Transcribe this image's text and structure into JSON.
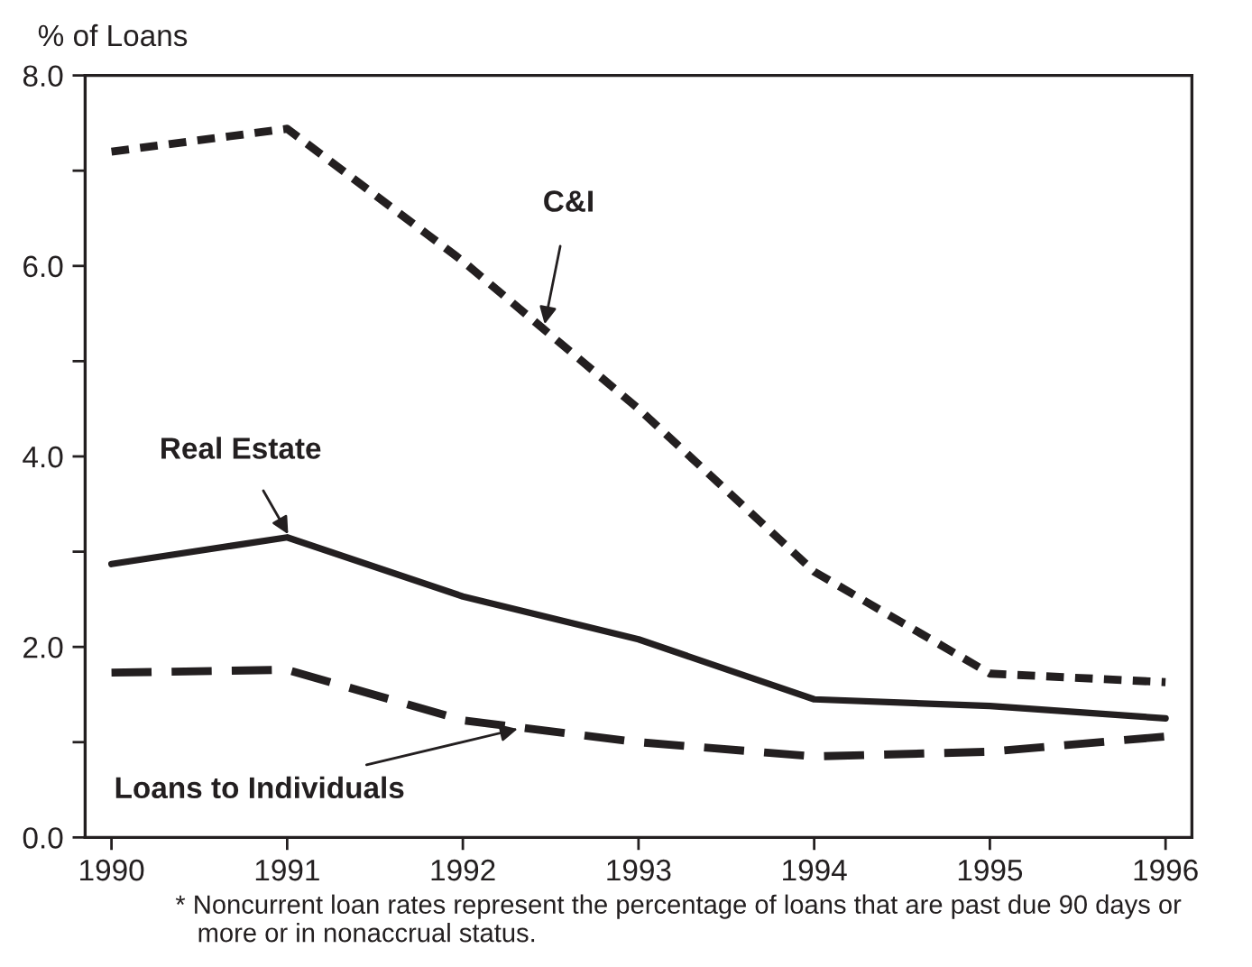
{
  "chart_data": {
    "type": "line",
    "ylabel": "% of Loans",
    "x": [
      1990,
      1991,
      1992,
      1993,
      1994,
      1995,
      1996
    ],
    "series": [
      {
        "name": "C&I",
        "color": "#231f20",
        "line_style": "dotted",
        "values": [
          7.2,
          7.44,
          6.05,
          4.5,
          2.79,
          1.72,
          1.63
        ]
      },
      {
        "name": "Real Estate",
        "color": "#231f20",
        "line_style": "solid",
        "values": [
          2.87,
          3.15,
          2.53,
          2.08,
          1.45,
          1.38,
          1.25
        ]
      },
      {
        "name": "Loans to Individuals",
        "color": "#231f20",
        "line_style": "dashed",
        "values": [
          1.73,
          1.76,
          1.23,
          1.0,
          0.85,
          0.9,
          1.06
        ]
      }
    ],
    "xlim": [
      1989.85,
      1996.15
    ],
    "xticks": [
      1990,
      1991,
      1992,
      1993,
      1994,
      1995,
      1996
    ],
    "ylim": [
      0,
      8
    ],
    "yticks": [
      {
        "value": 0,
        "label": "0.0"
      },
      {
        "value": 1,
        "label": null
      },
      {
        "value": 2,
        "label": "2.0"
      },
      {
        "value": 3,
        "label": null
      },
      {
        "value": 4,
        "label": "4.0"
      },
      {
        "value": 5,
        "label": null
      },
      {
        "value": 6,
        "label": "6.0"
      },
      {
        "value": 7,
        "label": null
      },
      {
        "value": 8,
        "label": "8.0"
      }
    ],
    "grid": false,
    "legend": false,
    "marker": "none",
    "annotations": [
      "* Noncurrent loan rates represent the percentage of loans that are past due 90 days or\n   more or in nonaccrual status."
    ]
  }
}
